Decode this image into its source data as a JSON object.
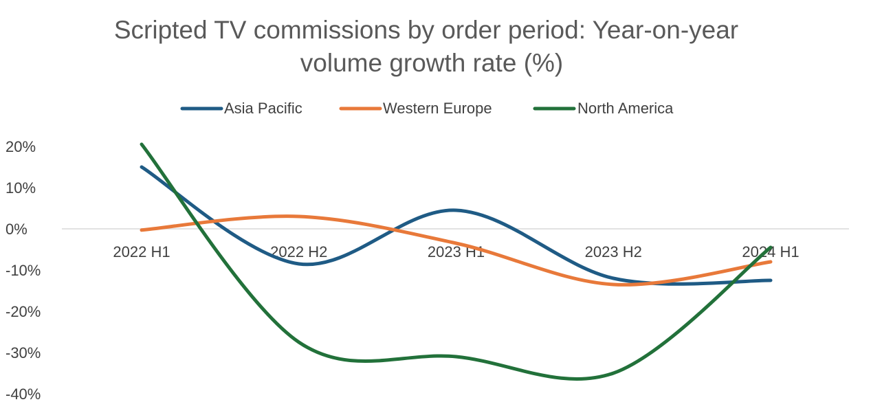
{
  "chart_data": {
    "type": "line",
    "title_lines": [
      "Scripted TV commissions by order period: Year-on-year",
      "volume growth rate (%)"
    ],
    "categories": [
      "2022 H1",
      "2022 H2",
      "2023 H1",
      "2023 H2",
      "2024 H1"
    ],
    "y_ticks": [
      "20%",
      "10%",
      "0%",
      "-10%",
      "-20%",
      "-30%",
      "-40%"
    ],
    "ylim": [
      -40,
      20
    ],
    "y_tick_values": [
      20,
      10,
      0,
      -10,
      -20,
      -30,
      -40
    ],
    "smooth": true,
    "legend_position": "top",
    "series": [
      {
        "name": "Asia Pacific",
        "color": "#1f5b85",
        "values": [
          15,
          -8.5,
          4.5,
          -12,
          -12.5
        ]
      },
      {
        "name": "Western Europe",
        "color": "#e8793a",
        "values": [
          -0.3,
          3,
          -3.5,
          -13.5,
          -8
        ]
      },
      {
        "name": "North America",
        "color": "#22713a",
        "values": [
          20.5,
          -27.5,
          -31,
          -35,
          -4.5
        ]
      }
    ]
  }
}
